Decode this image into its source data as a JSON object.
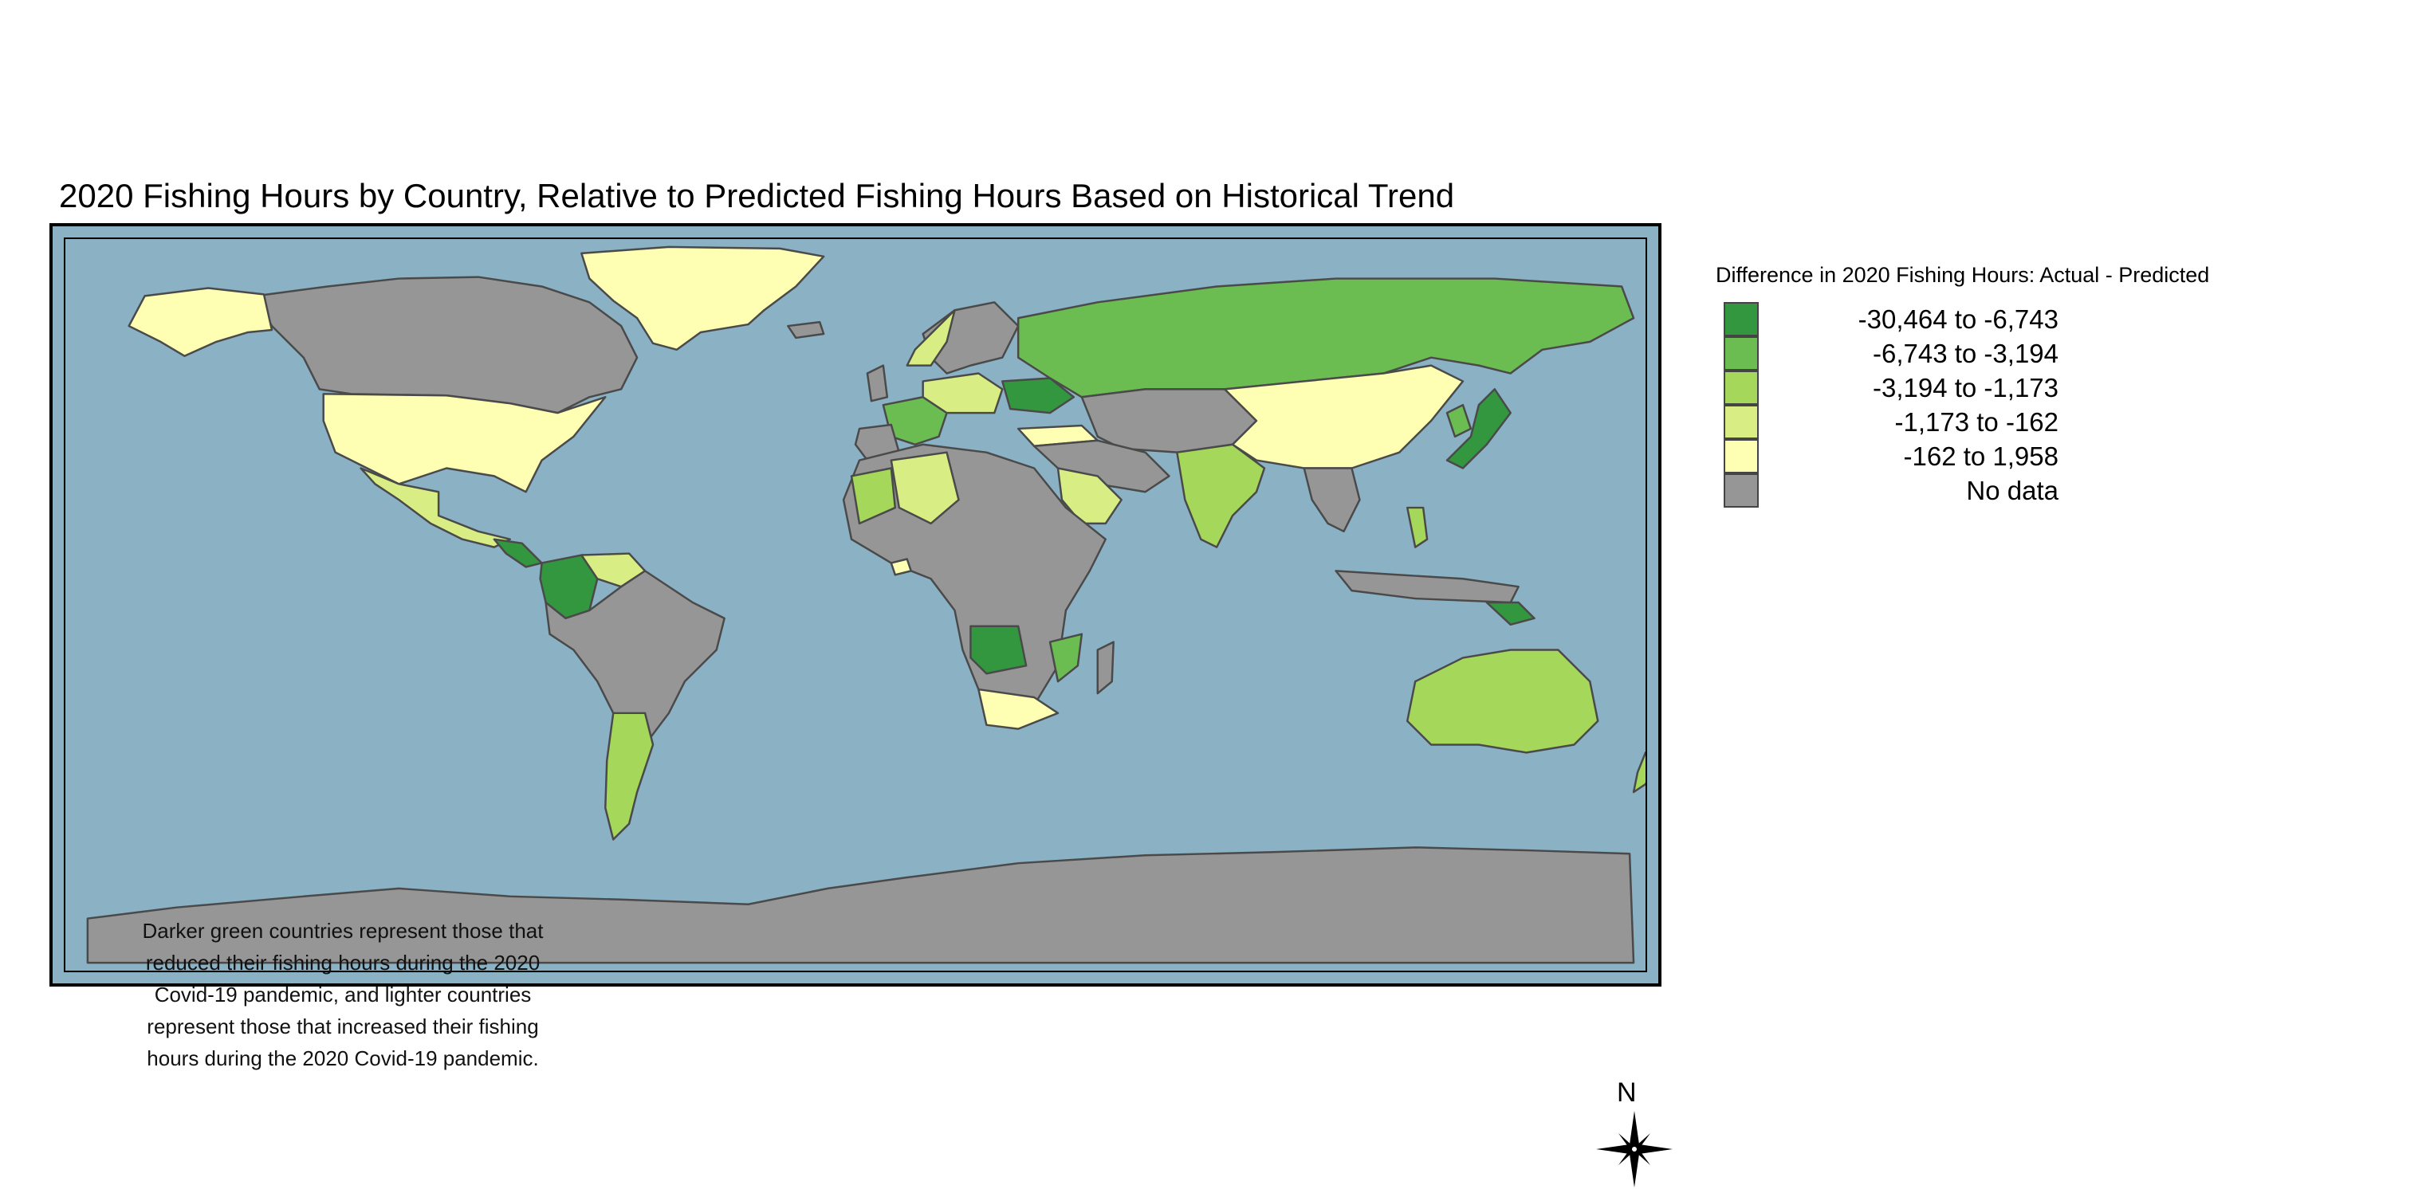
{
  "title": "2020 Fishing Hours by Country, Relative to Predicted Fishing Hours Based on Historical Trend",
  "note": "Darker green countries represent those that reduced their fishing hours during the 2020 Covid-19 pandemic, and lighter countries represent those that increased their fishing hours during the 2020 Covid-19 pandemic.",
  "compass": {
    "label": "N"
  },
  "legend": {
    "title": "Difference in 2020 Fishing Hours: Actual - Predicted",
    "items": [
      {
        "label": "-30,464 to -6,743",
        "color": "#32973f"
      },
      {
        "label": "-6,743 to -3,194",
        "color": "#6bbd52"
      },
      {
        "label": "-3,194 to -1,173",
        "color": "#a5d85a"
      },
      {
        "label": "-1,173 to -162",
        "color": "#d8ee85"
      },
      {
        "label": "-162 to 1,958",
        "color": "#ffffb3"
      },
      {
        "label": "No data",
        "color": "#969696"
      }
    ]
  },
  "colors": {
    "ocean": "#8bb1c4",
    "border": "#4a4a4a"
  }
}
